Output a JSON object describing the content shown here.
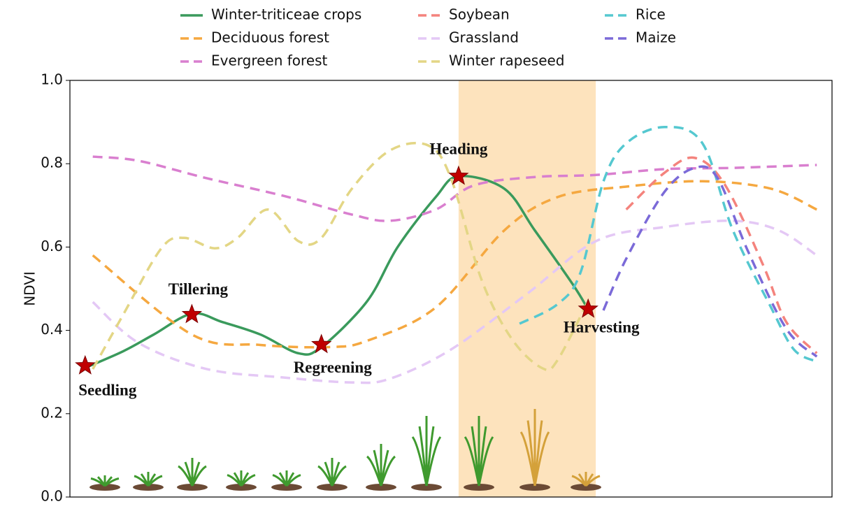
{
  "chart_data": {
    "type": "line",
    "ylabel": "NDVI",
    "xlim": [
      0,
      100
    ],
    "ylim": [
      0,
      1
    ],
    "yticks": [
      {
        "value": 0,
        "label": "0.0"
      },
      0.2,
      0.4,
      0.6,
      0.8,
      {
        "value": 1,
        "label": "1.0"
      }
    ],
    "grid": false,
    "legend": "top",
    "highlight_span": [
      51,
      69
    ],
    "highlight_color": "#fde3bd",
    "series": [
      {
        "name": "Winter-triticeae crops",
        "color": "#3a9a5c",
        "dashed": false,
        "x": [
          2,
          7,
          11,
          16,
          20,
          25,
          30,
          33,
          39,
          43,
          48,
          51,
          57,
          61,
          66,
          68
        ],
        "values": [
          0.31,
          0.35,
          0.39,
          0.44,
          0.42,
          0.39,
          0.345,
          0.36,
          0.47,
          0.6,
          0.72,
          0.77,
          0.74,
          0.64,
          0.51,
          0.45
        ]
      },
      {
        "name": "Deciduous forest",
        "color": "#f5a840",
        "dashed": true,
        "x": [
          3,
          16,
          25,
          34,
          39,
          48,
          57,
          64,
          73,
          83,
          92,
          98
        ],
        "values": [
          0.58,
          0.39,
          0.365,
          0.36,
          0.375,
          0.455,
          0.64,
          0.72,
          0.745,
          0.758,
          0.74,
          0.69
        ]
      },
      {
        "name": "Evergreen forest",
        "color": "#d97fcf",
        "dashed": true,
        "x": [
          3,
          9,
          18,
          28,
          37,
          42,
          48,
          53,
          61,
          69,
          78,
          87,
          98
        ],
        "values": [
          0.817,
          0.807,
          0.765,
          0.723,
          0.678,
          0.663,
          0.69,
          0.748,
          0.768,
          0.773,
          0.787,
          0.79,
          0.797
        ]
      },
      {
        "name": "Soybean",
        "color": "#f4837d",
        "dashed": true,
        "x": [
          73,
          78,
          82,
          86,
          91,
          94,
          98
        ],
        "values": [
          0.69,
          0.778,
          0.814,
          0.748,
          0.555,
          0.42,
          0.345
        ]
      },
      {
        "name": "Grassland",
        "color": "#e4c8f5",
        "dashed": true,
        "x": [
          3,
          9,
          18,
          28,
          37,
          42,
          50,
          60,
          69,
          78,
          87,
          93,
          98
        ],
        "values": [
          0.468,
          0.37,
          0.307,
          0.287,
          0.275,
          0.284,
          0.354,
          0.488,
          0.614,
          0.648,
          0.663,
          0.64,
          0.58
        ]
      },
      {
        "name": "Winter rapeseed",
        "color": "#e3d685",
        "dashed": true,
        "x": [
          3,
          7,
          12,
          15,
          19,
          22,
          26,
          30,
          33,
          37,
          42,
          47,
          50,
          54,
          58,
          62,
          64,
          68
        ],
        "values": [
          0.307,
          0.438,
          0.597,
          0.622,
          0.597,
          0.622,
          0.69,
          0.614,
          0.622,
          0.74,
          0.832,
          0.844,
          0.765,
          0.522,
          0.379,
          0.309,
          0.329,
          0.471
        ]
      },
      {
        "name": "Rice",
        "color": "#55c8d0",
        "dashed": true,
        "x": [
          59,
          64,
          67,
          70,
          73,
          78,
          83,
          87,
          92,
          95,
          98
        ],
        "values": [
          0.416,
          0.463,
          0.539,
          0.757,
          0.849,
          0.888,
          0.849,
          0.64,
          0.455,
          0.354,
          0.325
        ]
      },
      {
        "name": "Maize",
        "color": "#7b6ad8",
        "dashed": true,
        "x": [
          70,
          73,
          78,
          82,
          85,
          89,
          94,
          98
        ],
        "values": [
          0.448,
          0.572,
          0.732,
          0.79,
          0.765,
          0.589,
          0.404,
          0.337
        ]
      }
    ],
    "annotations": [
      {
        "label": "Seedling",
        "x": 2,
        "y": 0.315
      },
      {
        "label": "Tillering",
        "x": 16,
        "y": 0.438
      },
      {
        "label": "Regreening",
        "x": 33,
        "y": 0.366
      },
      {
        "label": "Heading",
        "x": 51,
        "y": 0.77
      },
      {
        "label": "Harvesting",
        "x": 68,
        "y": 0.451
      }
    ],
    "marker_color": "#c00000"
  }
}
